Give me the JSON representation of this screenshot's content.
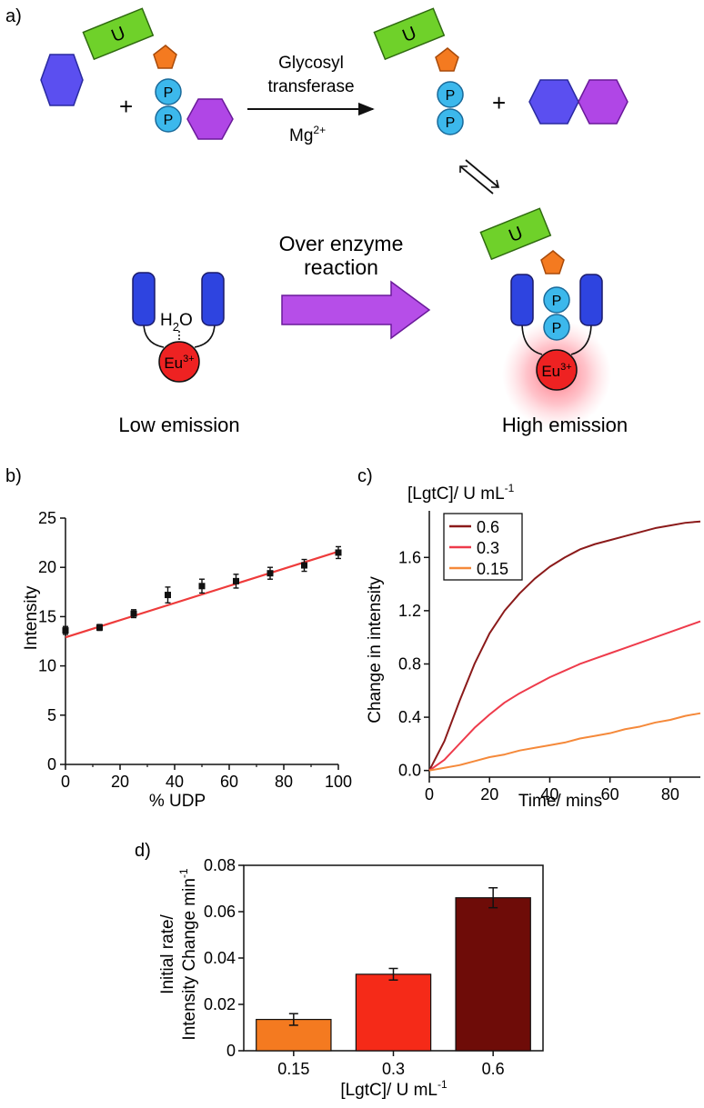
{
  "panel_a": {
    "label": "a)",
    "uridine_letter": "U",
    "phosphate_letter": "P",
    "reaction_line1": "Glycosyl",
    "reaction_line2": "transferase",
    "cofactor": "Mg",
    "cofactor_charge": "2+",
    "plus": "+",
    "water_h": "H",
    "water_sub": "2",
    "water_o": "O",
    "europium": "Eu",
    "europium_charge": "3+",
    "arrow_line1": "Over enzyme",
    "arrow_line2": "reaction",
    "low_emission": "Low emission",
    "high_emission": "High emission",
    "colors": {
      "uridine": "#6fd12a",
      "ribose": "#f47a20",
      "phosphate": "#3cb8ec",
      "hexose_blue": "#5b4ff0",
      "hexose_purple": "#b046e6",
      "receptor_arm": "#2e44e0",
      "europium": "#ee2222",
      "big_arrow": "#b64ee8"
    }
  },
  "panels": {
    "b": "b)",
    "c": "c)",
    "d": "d)"
  },
  "chart_data": [
    {
      "panel": "b",
      "type": "scatter",
      "xlabel": "% UDP",
      "ylabel": "Intensity",
      "xlim": [
        0,
        100
      ],
      "ylim": [
        0,
        25
      ],
      "xticks": [
        0,
        20,
        40,
        60,
        80,
        100
      ],
      "yticks": [
        0,
        5,
        10,
        15,
        20,
        25
      ],
      "points": {
        "x": [
          0,
          12.5,
          25,
          37.5,
          50,
          62.5,
          75,
          87.5,
          100
        ],
        "y": [
          13.6,
          13.9,
          15.3,
          17.2,
          18.1,
          18.6,
          19.4,
          20.2,
          21.5
        ],
        "err": [
          0.4,
          0.3,
          0.4,
          0.8,
          0.7,
          0.7,
          0.6,
          0.6,
          0.6
        ]
      },
      "fit": {
        "x": [
          0,
          100
        ],
        "y": [
          12.9,
          21.6
        ]
      },
      "colors": {
        "points": "#111111",
        "fit": "#ee3b3b"
      },
      "grid": false
    },
    {
      "panel": "c",
      "type": "line",
      "title": "[LgtC]/ U mL",
      "title_sup": "-1",
      "xlabel": "Time/ mins",
      "ylabel": "Change in intensity",
      "xlim": [
        0,
        90
      ],
      "ylim": [
        -0.05,
        1.95
      ],
      "xticks": [
        0,
        20,
        40,
        60,
        80
      ],
      "yticks": [
        "0.0",
        "0.4",
        "0.8",
        "1.2",
        "1.6"
      ],
      "legend_position": "top-left",
      "series": [
        {
          "name": "0.6",
          "color": "#8b1a1a",
          "x": [
            0,
            5,
            10,
            15,
            20,
            25,
            30,
            35,
            40,
            45,
            50,
            55,
            60,
            65,
            70,
            75,
            80,
            85,
            90
          ],
          "y": [
            0.0,
            0.22,
            0.52,
            0.8,
            1.03,
            1.2,
            1.33,
            1.44,
            1.53,
            1.6,
            1.66,
            1.7,
            1.73,
            1.76,
            1.79,
            1.82,
            1.84,
            1.86,
            1.87
          ]
        },
        {
          "name": "0.3",
          "color": "#ee3b4b",
          "x": [
            0,
            5,
            10,
            15,
            20,
            25,
            30,
            35,
            40,
            45,
            50,
            55,
            60,
            65,
            70,
            75,
            80,
            85,
            90
          ],
          "y": [
            0.0,
            0.08,
            0.2,
            0.32,
            0.42,
            0.51,
            0.58,
            0.64,
            0.7,
            0.75,
            0.8,
            0.84,
            0.88,
            0.92,
            0.96,
            1.0,
            1.04,
            1.08,
            1.12
          ]
        },
        {
          "name": "0.15",
          "color": "#f5893a",
          "x": [
            0,
            5,
            10,
            15,
            20,
            25,
            30,
            35,
            40,
            45,
            50,
            55,
            60,
            65,
            70,
            75,
            80,
            85,
            90
          ],
          "y": [
            0.0,
            0.02,
            0.04,
            0.07,
            0.1,
            0.12,
            0.15,
            0.17,
            0.19,
            0.21,
            0.24,
            0.26,
            0.28,
            0.31,
            0.33,
            0.36,
            0.38,
            0.41,
            0.43
          ]
        }
      ],
      "grid": false
    },
    {
      "panel": "d",
      "type": "bar",
      "categories": [
        "0.15",
        "0.3",
        "0.6"
      ],
      "values": [
        0.0135,
        0.033,
        0.066
      ],
      "errors": [
        0.0025,
        0.0025,
        0.0043
      ],
      "colors": [
        "#f47a20",
        "#f52a18",
        "#6e0c08"
      ],
      "xlabel": "[LgtC]/ U mL",
      "xlabel_sup": "-1",
      "ylabel_line1": "Initial rate/",
      "ylabel_line2": "Intensity Change min",
      "ylabel_sup": "-1",
      "ylim": [
        0,
        0.08
      ],
      "yticks": [
        "0",
        "0.02",
        "0.04",
        "0.06",
        "0.08"
      ],
      "grid": false
    }
  ]
}
